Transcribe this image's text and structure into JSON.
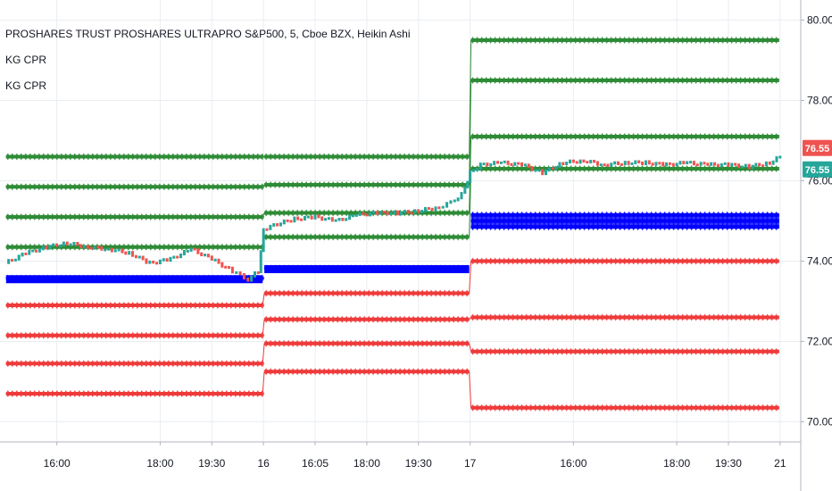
{
  "chart_data": {
    "type": "line",
    "title": "PROSHARES TRUST PROSHARES ULTRAPRO S&P500, 5, Cboe BZX, Heikin Ashi",
    "indicators": [
      "KG CPR",
      "KG CPR"
    ],
    "ylim": [
      69.5,
      80.5
    ],
    "y_ticks": [
      70,
      72,
      74,
      76,
      78,
      80
    ],
    "y_tick_labels": [
      "70.00",
      "72.00",
      "74.00",
      "76.00",
      "78.00",
      "80.00"
    ],
    "x_tick_labels": [
      "16:00",
      "18:00",
      "19:30",
      "16",
      "16:05",
      "18:00",
      "19:30",
      "17",
      "16:00",
      "18:00",
      "19:30",
      "21"
    ],
    "x_ticks": [
      0.5,
      1.5,
      2.0,
      2.5,
      3.0,
      3.5,
      4.0,
      4.5,
      5.5,
      6.5,
      7.0,
      7.5
    ],
    "xlim": [
      -0.05,
      7.7
    ],
    "grid": true,
    "price_labels": [
      {
        "value": 76.55,
        "text": "76.55",
        "color": "#ef5350"
      },
      {
        "value": 76.55,
        "text": "76.55",
        "color": "#26a69a"
      }
    ],
    "sessions": [
      {
        "x_range": [
          0,
          2.5
        ],
        "resistance": [
          76.6,
          75.85,
          75.1,
          74.35
        ],
        "pivot": [
          73.55,
          73.6
        ],
        "support": [
          72.9,
          72.15,
          71.45,
          70.7
        ]
      },
      {
        "x_range": [
          2.5,
          4.5
        ],
        "resistance": [
          76.6,
          75.9,
          75.2,
          74.6
        ],
        "pivot": [
          73.8,
          73.85
        ],
        "support": [
          73.2,
          72.55,
          71.95,
          71.25
        ]
      },
      {
        "x_range": [
          4.5,
          7.5
        ],
        "resistance": [
          79.5,
          78.5,
          77.1,
          76.3
        ],
        "pivot": [
          74.85,
          75.15
        ],
        "support": [
          74.0,
          72.6,
          71.75,
          70.35
        ]
      }
    ],
    "series": [
      {
        "x": [
          0,
          0.2,
          0.4,
          0.6,
          0.8,
          1.0,
          1.2,
          1.4,
          1.6,
          1.8,
          2.0,
          2.2,
          2.35,
          2.45,
          2.5,
          2.6,
          2.8,
          3.0,
          3.2,
          3.4,
          3.6,
          3.8,
          4.0,
          4.2,
          4.35,
          4.45,
          4.5,
          4.6,
          4.8,
          5.0,
          5.2,
          5.4,
          5.6,
          5.8,
          6.0,
          6.2,
          6.4,
          6.6,
          6.8,
          7.0,
          7.2,
          7.4,
          7.5
        ],
        "values": [
          73.95,
          74.2,
          74.35,
          74.45,
          74.35,
          74.3,
          74.2,
          73.95,
          74.05,
          74.3,
          74.05,
          73.75,
          73.55,
          73.75,
          74.8,
          74.9,
          75.05,
          75.1,
          75.0,
          75.15,
          75.2,
          75.2,
          75.25,
          75.35,
          75.5,
          75.8,
          76.2,
          76.4,
          76.45,
          76.4,
          76.2,
          76.45,
          76.5,
          76.4,
          76.45,
          76.45,
          76.4,
          76.45,
          76.4,
          76.4,
          76.35,
          76.45,
          76.6
        ]
      }
    ],
    "colors": {
      "resistance": "#2e8b36",
      "pivot": "#0000ff",
      "support": "#ef3b3b",
      "up": "#26a69a",
      "down": "#ef5350",
      "grid": "#e9edf2",
      "axis_text": "#131722"
    }
  }
}
